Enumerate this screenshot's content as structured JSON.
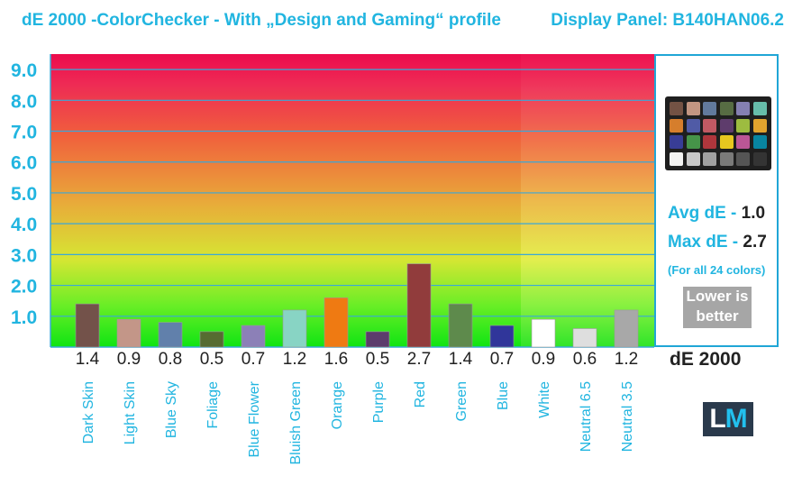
{
  "header": {
    "title": "dE 2000 -ColorChecker - With „Design and Gaming“ profile",
    "panel": "Display Panel: B140HAN06.2"
  },
  "side": {
    "avg_label": "Avg dE - ",
    "avg_value": "1.0",
    "max_label": "Max dE - ",
    "max_value": "2.7",
    "note": "(For all 24 colors)",
    "lower_line1": "Lower is",
    "lower_line2": "better",
    "metric": "dE 2000",
    "logo_l": "L",
    "logo_m": "M",
    "colorchecker": [
      "#735244",
      "#c29682",
      "#627a9d",
      "#576c43",
      "#8580b1",
      "#67bdaa",
      "#d67e2c",
      "#505ba6",
      "#c15a63",
      "#5e3c6c",
      "#9dbc40",
      "#e0a32e",
      "#383d96",
      "#469449",
      "#af363c",
      "#e7c71f",
      "#bb5695",
      "#0885a1",
      "#f3f3f2",
      "#c8c8c8",
      "#a0a0a0",
      "#7a7a79",
      "#555555",
      "#343434"
    ]
  },
  "chart_data": {
    "type": "bar",
    "title": "dE 2000 -ColorChecker - With „Design and Gaming“ profile",
    "xlabel": "",
    "ylabel": "",
    "ylim": [
      0,
      9.5
    ],
    "yticks": [
      "1.0",
      "2.0",
      "3.0",
      "4.0",
      "5.0",
      "6.0",
      "7.0",
      "8.0",
      "9.0"
    ],
    "grid": true,
    "categories": [
      "Dark Skin",
      "Light Skin",
      "Blue Sky",
      "Foliage",
      "Blue Flower",
      "Bluish Green",
      "Orange",
      "Purple",
      "Red",
      "Green",
      "Blue",
      "White",
      "Neutral 6.5",
      "Neutral 3.5"
    ],
    "values": [
      1.4,
      0.9,
      0.8,
      0.5,
      0.7,
      1.2,
      1.6,
      0.5,
      2.7,
      1.4,
      0.7,
      0.9,
      0.6,
      1.2
    ],
    "value_labels": [
      "1.4",
      "0.9",
      "0.8",
      "0.5",
      "0.7",
      "1.2",
      "1.6",
      "0.5",
      "2.7",
      "1.4",
      "0.7",
      "0.9",
      "0.6",
      "1.2"
    ],
    "colors": [
      "#73524a",
      "#c39688",
      "#6180ab",
      "#566c31",
      "#8c80b7",
      "#88d4c4",
      "#ef7a12",
      "#5c3c6c",
      "#913c3c",
      "#5e8a4c",
      "#30369a",
      "#ffffff",
      "#dedede",
      "#a8a8a8"
    ]
  }
}
